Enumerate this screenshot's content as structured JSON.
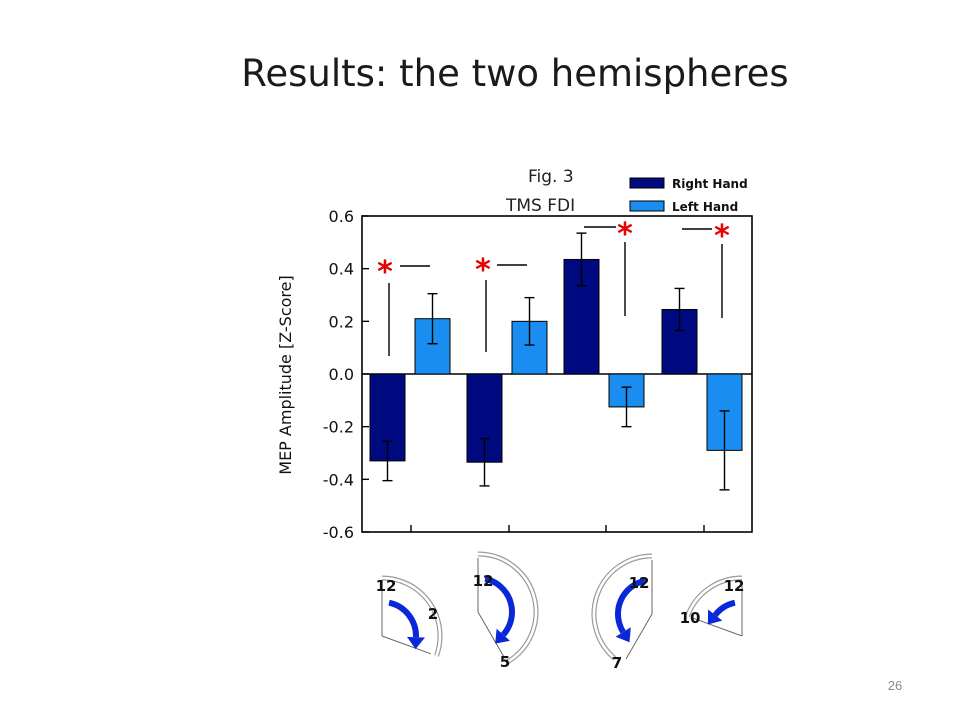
{
  "slide": {
    "title": "Results: the two hemispheres",
    "page_number": "26"
  },
  "chart_data": {
    "type": "bar",
    "title": "Fig. 3",
    "subtitle": "TMS FDI",
    "xlabel": "",
    "ylabel": "MEP Amplitude  [Z-Score]",
    "ylim": [
      -0.6,
      0.6
    ],
    "yticks": [
      "0.6",
      "0.4",
      "0.2",
      "0.0",
      "-0.2",
      "-0.4",
      "-0.6"
    ],
    "ytick_values": [
      0.6,
      0.4,
      0.2,
      0.0,
      -0.2,
      -0.4,
      -0.6
    ],
    "grid": false,
    "legend_position": "top-right",
    "categories": [
      "12→2",
      "12→5",
      "12→7",
      "12→10"
    ],
    "series": [
      {
        "name": "Right Hand",
        "color": "#000a80",
        "values": [
          -0.33,
          -0.335,
          0.435,
          0.245
        ],
        "errors": [
          0.075,
          0.09,
          0.1,
          0.08
        ]
      },
      {
        "name": "Left Hand",
        "color": "#1a8ef0",
        "values": [
          0.21,
          0.2,
          -0.125,
          -0.29
        ],
        "errors": [
          0.095,
          0.09,
          0.075,
          0.15
        ]
      }
    ],
    "significance": [
      "*",
      "*",
      "*",
      "*"
    ],
    "clock_movements": [
      {
        "start": "12",
        "end": "2"
      },
      {
        "start": "12",
        "end": "5"
      },
      {
        "start": "12",
        "end": "7"
      },
      {
        "start": "12",
        "end": "10"
      }
    ]
  }
}
